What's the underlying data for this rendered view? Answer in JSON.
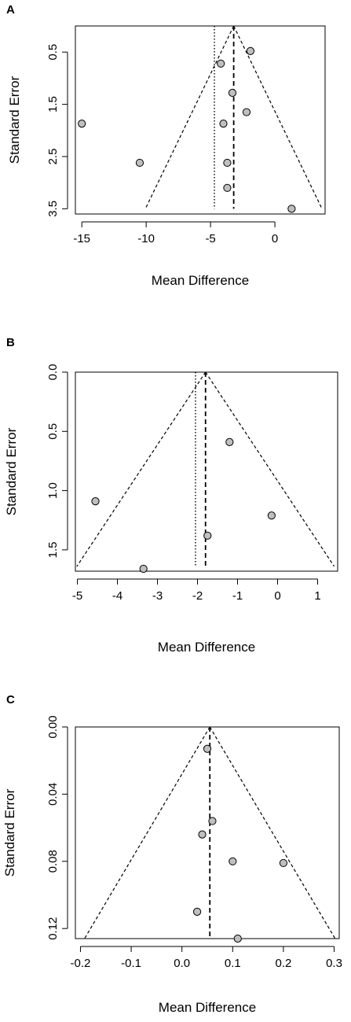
{
  "chart_data": [
    {
      "type": "scatter",
      "subtype": "funnel-plot",
      "panel_label": "A",
      "xlabel": "Mean Difference",
      "ylabel": "Standard Error",
      "y_reversed": true,
      "xlim": [
        -15.5,
        3.9
      ],
      "ylim": [
        0.0,
        3.6
      ],
      "x_ticks": [
        -15,
        -10,
        -5,
        0
      ],
      "x_tick_labels": [
        "-15",
        "-10",
        "-5",
        "0"
      ],
      "y_ticks": [
        0.5,
        1.5,
        2.5,
        3.5
      ],
      "y_tick_labels": [
        "0.5",
        "1.5",
        "2.5",
        "3.5"
      ],
      "pooled_estimate": -3.2,
      "dotted_line_x": -4.7,
      "funnel_max_se": 3.5,
      "points": [
        {
          "x": -1.9,
          "y": 0.48
        },
        {
          "x": -4.2,
          "y": 0.72
        },
        {
          "x": -3.3,
          "y": 1.28
        },
        {
          "x": -2.2,
          "y": 1.65
        },
        {
          "x": -4.0,
          "y": 1.87
        },
        {
          "x": -15.0,
          "y": 1.87
        },
        {
          "x": -10.5,
          "y": 2.62
        },
        {
          "x": -3.7,
          "y": 2.62
        },
        {
          "x": -3.7,
          "y": 3.1
        },
        {
          "x": 1.3,
          "y": 3.5
        }
      ],
      "grid": false,
      "point_color": "#bfbfbf"
    },
    {
      "type": "scatter",
      "subtype": "funnel-plot",
      "panel_label": "B",
      "xlabel": "Mean Difference",
      "ylabel": "Standard Error",
      "y_reversed": true,
      "xlim": [
        -5.05,
        1.5
      ],
      "ylim": [
        0.0,
        1.68
      ],
      "x_ticks": [
        -5,
        -4,
        -3,
        -2,
        -1,
        0,
        1
      ],
      "x_tick_labels": [
        "-5",
        "-4",
        "-3",
        "-2",
        "-1",
        "0",
        "1"
      ],
      "y_ticks": [
        0.0,
        0.5,
        1.0,
        1.5
      ],
      "y_tick_labels": [
        "0.0",
        "0.5",
        "1.0",
        "1.5"
      ],
      "pooled_estimate": -1.8,
      "dotted_line_x": -2.05,
      "funnel_max_se": 1.64,
      "points": [
        {
          "x": -1.2,
          "y": 0.59
        },
        {
          "x": -4.55,
          "y": 1.09
        },
        {
          "x": -0.15,
          "y": 1.21
        },
        {
          "x": -1.75,
          "y": 1.38
        },
        {
          "x": -3.35,
          "y": 1.66
        }
      ],
      "grid": false,
      "point_color": "#bfbfbf"
    },
    {
      "type": "scatter",
      "subtype": "funnel-plot",
      "panel_label": "C",
      "xlabel": "Mean Difference",
      "ylabel": "Standard Error",
      "y_reversed": true,
      "xlim": [
        -0.21,
        0.31
      ],
      "ylim": [
        0.0,
        0.126
      ],
      "x_ticks": [
        -0.2,
        -0.1,
        0.0,
        0.1,
        0.2,
        0.3
      ],
      "x_tick_labels": [
        "-0.2",
        "-0.1",
        "0.0",
        "0.1",
        "0.2",
        "0.3"
      ],
      "y_ticks": [
        0.0,
        0.04,
        0.08,
        0.12
      ],
      "y_tick_labels": [
        "0.00",
        "0.04",
        "0.08",
        "0.12"
      ],
      "pooled_estimate": 0.055,
      "funnel_max_se": 0.126,
      "points": [
        {
          "x": 0.05,
          "y": 0.013
        },
        {
          "x": 0.06,
          "y": 0.056
        },
        {
          "x": 0.04,
          "y": 0.064
        },
        {
          "x": 0.1,
          "y": 0.08
        },
        {
          "x": 0.2,
          "y": 0.081
        },
        {
          "x": 0.03,
          "y": 0.11
        },
        {
          "x": 0.11,
          "y": 0.126
        }
      ],
      "grid": false,
      "point_color": "#bfbfbf"
    }
  ]
}
